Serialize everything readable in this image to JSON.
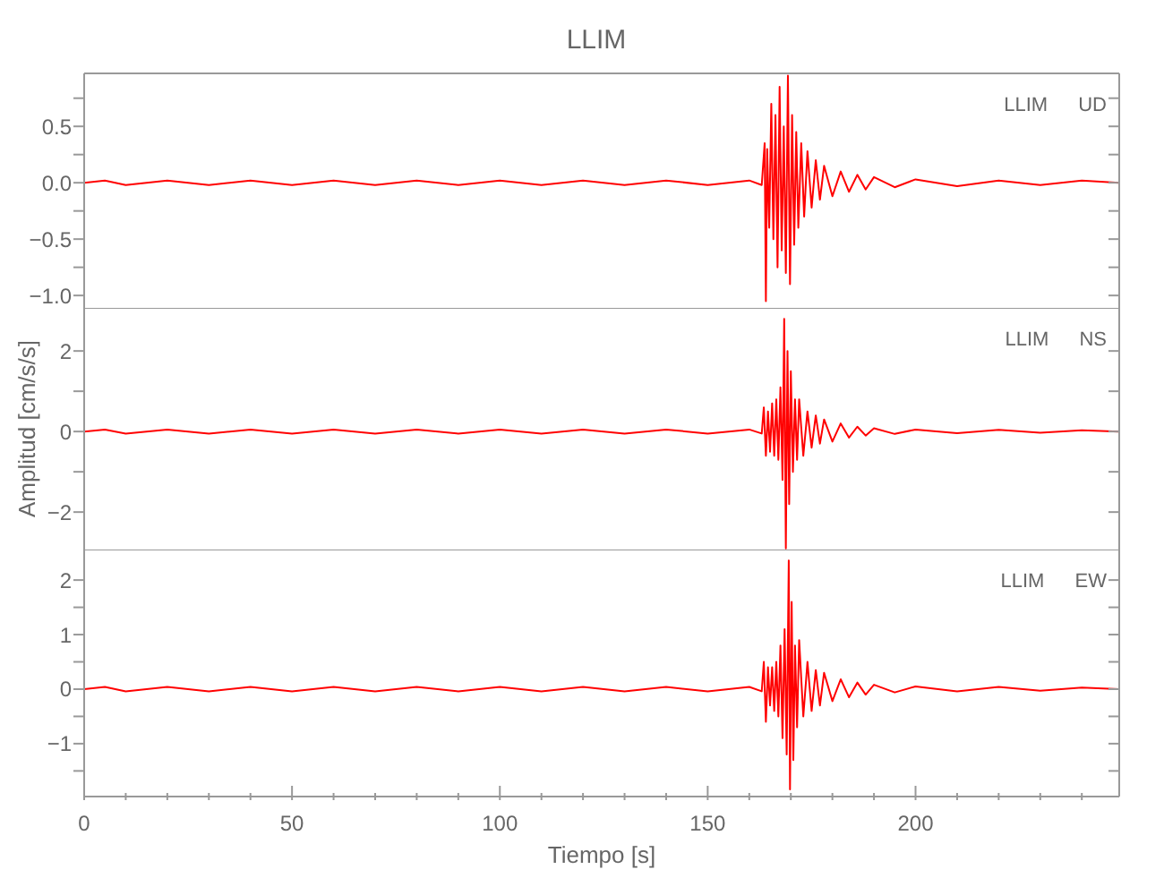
{
  "chart_data": [
    {
      "type": "line",
      "title": "LLIM",
      "annotations": [
        "LLIM UD"
      ],
      "tick_labels": "y",
      "marker": "none",
      "xlim": [
        0,
        249
      ],
      "ylim": [
        -1.11,
        0.97
      ],
      "yticks": [
        {
          "value": -1,
          "label": "−1.0"
        },
        {
          "value": -0.75,
          "label": null
        },
        {
          "value": -0.5,
          "label": "−0.5"
        },
        {
          "value": -0.25,
          "label": null
        },
        {
          "value": 0,
          "label": "0.0"
        },
        {
          "value": 0.25,
          "label": null
        },
        {
          "value": 0.5,
          "label": "0.5"
        },
        {
          "value": 0.75,
          "label": null
        }
      ],
      "series": [
        {
          "color": "#ff0000",
          "x": [
            0,
            5,
            10,
            20,
            30,
            40,
            50,
            60,
            70,
            80,
            90,
            100,
            110,
            120,
            130,
            140,
            150,
            160,
            163,
            163.7,
            164,
            164.3,
            164.8,
            165.3,
            165.8,
            166.3,
            166.8,
            167.3,
            167.8,
            168.3,
            168.8,
            169.3,
            169.8,
            170.3,
            170.8,
            171.3,
            171.8,
            172.5,
            173.2,
            174,
            175,
            176,
            177,
            178,
            180,
            182,
            184,
            186,
            188,
            190,
            195,
            200,
            210,
            220,
            230,
            240,
            249
          ],
          "values": [
            0,
            0.02,
            -0.02,
            0.02,
            -0.02,
            0.02,
            -0.02,
            0.02,
            -0.02,
            0.02,
            -0.02,
            0.02,
            -0.02,
            0.02,
            -0.02,
            0.02,
            -0.02,
            0.02,
            -0.02,
            0.35,
            -1.05,
            0.3,
            -0.4,
            0.7,
            -0.5,
            0.6,
            -0.75,
            0.85,
            -0.6,
            0.5,
            -0.8,
            0.95,
            -0.9,
            0.6,
            -0.55,
            0.45,
            -0.4,
            0.35,
            -0.3,
            0.28,
            -0.22,
            0.2,
            -0.15,
            0.15,
            -0.12,
            0.1,
            -0.08,
            0.07,
            -0.06,
            0.05,
            -0.04,
            0.03,
            -0.03,
            0.02,
            -0.02,
            0.02,
            0
          ]
        }
      ]
    },
    {
      "type": "line",
      "ylabel": "Amplitud [cm/s/s]",
      "annotations": [
        "LLIM NS"
      ],
      "tick_labels": "y",
      "marker": "none",
      "xlim": [
        0,
        249
      ],
      "ylim": [
        -2.93,
        3.07
      ],
      "yticks": [
        {
          "value": -2,
          "label": "−2"
        },
        {
          "value": -1,
          "label": null
        },
        {
          "value": 0,
          "label": "0"
        },
        {
          "value": 1,
          "label": null
        },
        {
          "value": 2,
          "label": "2"
        }
      ],
      "series": [
        {
          "color": "#ff0000",
          "x": [
            0,
            5,
            10,
            20,
            30,
            40,
            50,
            60,
            70,
            80,
            90,
            100,
            110,
            120,
            130,
            140,
            150,
            160,
            163,
            163.5,
            164,
            164.5,
            165,
            165.5,
            166,
            166.5,
            167,
            167.5,
            168,
            168.4,
            168.8,
            169.2,
            169.6,
            170,
            170.5,
            171,
            171.5,
            172,
            173,
            174,
            175,
            176,
            177,
            178,
            180,
            182,
            184,
            186,
            188,
            190,
            195,
            200,
            210,
            220,
            230,
            240,
            249
          ],
          "values": [
            0,
            0.05,
            -0.05,
            0.05,
            -0.05,
            0.05,
            -0.05,
            0.05,
            -0.05,
            0.05,
            -0.05,
            0.05,
            -0.05,
            0.05,
            -0.05,
            0.05,
            -0.05,
            0.05,
            -0.05,
            0.6,
            -0.6,
            0.5,
            -0.5,
            0.7,
            -0.6,
            0.8,
            -0.7,
            1.1,
            -1.2,
            2.8,
            -2.9,
            2.0,
            -1.8,
            1.5,
            -1.0,
            0.8,
            -0.7,
            0.8,
            -0.6,
            0.5,
            -0.4,
            0.4,
            -0.3,
            0.3,
            -0.25,
            0.2,
            -0.15,
            0.12,
            -0.1,
            0.08,
            -0.06,
            0.05,
            -0.04,
            0.04,
            -0.03,
            0.03,
            0
          ]
        }
      ]
    },
    {
      "type": "line",
      "xlabel": "Tiempo [s]",
      "annotations": [
        "LLIM EW"
      ],
      "marker": "none",
      "xlim": [
        0,
        249
      ],
      "xticks": [
        0,
        50,
        100,
        150,
        200
      ],
      "ylim": [
        -1.97,
        2.56
      ],
      "yticks": [
        {
          "value": -1.5,
          "label": null
        },
        {
          "value": -1,
          "label": "−1"
        },
        {
          "value": -0.5,
          "label": null
        },
        {
          "value": 0,
          "label": "0"
        },
        {
          "value": 0.5,
          "label": null
        },
        {
          "value": 1,
          "label": "1"
        },
        {
          "value": 1.5,
          "label": null
        },
        {
          "value": 2,
          "label": "2"
        }
      ],
      "series": [
        {
          "color": "#ff0000",
          "x": [
            0,
            5,
            10,
            20,
            30,
            40,
            50,
            60,
            70,
            80,
            90,
            100,
            110,
            120,
            130,
            140,
            150,
            160,
            163,
            163.5,
            164,
            164.5,
            165,
            165.5,
            166,
            166.5,
            167,
            167.5,
            168,
            168.5,
            169,
            169.5,
            169.8,
            170.2,
            170.6,
            171,
            171.5,
            172,
            173,
            174,
            175,
            176,
            177,
            178,
            180,
            182,
            184,
            186,
            188,
            190,
            195,
            200,
            210,
            220,
            230,
            240,
            249
          ],
          "values": [
            0,
            0.04,
            -0.04,
            0.04,
            -0.04,
            0.04,
            -0.04,
            0.04,
            -0.04,
            0.04,
            -0.04,
            0.04,
            -0.04,
            0.04,
            -0.04,
            0.04,
            -0.04,
            0.04,
            -0.04,
            0.5,
            -0.6,
            0.4,
            -0.3,
            0.4,
            -0.4,
            0.5,
            -0.5,
            0.8,
            -0.9,
            1.1,
            -1.2,
            2.36,
            -1.84,
            1.6,
            -1.3,
            0.8,
            -0.7,
            0.9,
            -0.5,
            0.5,
            -0.4,
            0.35,
            -0.3,
            0.3,
            -0.22,
            0.18,
            -0.15,
            0.12,
            -0.1,
            0.08,
            -0.06,
            0.05,
            -0.04,
            0.04,
            -0.03,
            0.03,
            0
          ]
        }
      ]
    }
  ]
}
